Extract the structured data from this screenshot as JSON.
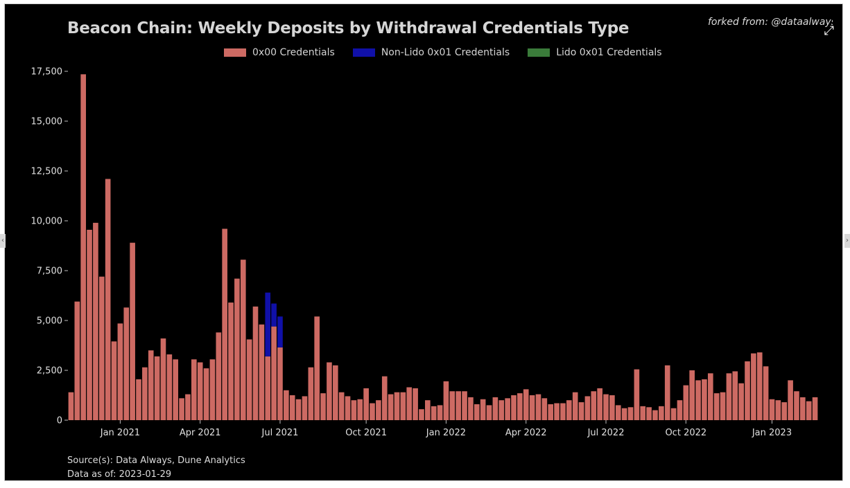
{
  "header": {
    "title": "Beacon Chain: Weekly Deposits by Withdrawal Credentials Type",
    "forked_from": "forked from: @dataalways",
    "expand_icon": "expand-icon"
  },
  "footer": {
    "source": "Source(s): Data Always, Dune Analytics",
    "data_as_of": "Data as of: 2023-01-29"
  },
  "colors": {
    "background": "#000000",
    "x00": "#cd6a63",
    "nonlido": "#1010a8",
    "lido": "#3a7b3a",
    "text": "#e0e0e0"
  },
  "chart_data": {
    "type": "bar",
    "stacked": true,
    "title": "Beacon Chain: Weekly Deposits by Withdrawal Credentials Type",
    "xlabel": "",
    "ylabel": "",
    "ylim": [
      0,
      17500
    ],
    "y_ticks": [
      0,
      2500,
      5000,
      7500,
      10000,
      12500,
      15000,
      17500
    ],
    "y_tick_labels": [
      "0",
      "2,500",
      "5,000",
      "7,500",
      "10,000",
      "12,500",
      "15,000",
      "17,500"
    ],
    "x_tick_labels": [
      "Jan 2021",
      "Apr 2021",
      "Jul 2021",
      "Oct 2021",
      "Jan 2022",
      "Apr 2022",
      "Jul 2022",
      "Oct 2022",
      "Jan 2023"
    ],
    "x_tick_index": [
      8,
      21,
      34,
      48,
      61,
      74,
      87,
      100,
      114
    ],
    "grid": false,
    "legend_position": "top",
    "series": [
      {
        "name": "0x00 Credentials",
        "color": "#cd6a63",
        "values": [
          1400,
          5950,
          17350,
          9550,
          9900,
          7200,
          12100,
          3950,
          4850,
          5650,
          8900,
          2050,
          2650,
          3500,
          3200,
          4100,
          3300,
          3050,
          1100,
          1300,
          3050,
          2900,
          2600,
          3050,
          4400,
          9600,
          5900,
          7100,
          8050,
          4050,
          5700,
          4800,
          3200,
          4700,
          3650,
          1500,
          1250,
          1050,
          1200,
          2650,
          5200,
          1350,
          2900,
          2750,
          1400,
          1200,
          1000,
          1050,
          1600,
          850,
          1000,
          2200,
          1300,
          1400,
          1400,
          1650,
          1600,
          550,
          1000,
          700,
          750,
          1950,
          1450,
          1450,
          1450,
          1150,
          800,
          1050,
          750,
          1150,
          1000,
          1100,
          1250,
          1350,
          1550,
          1250,
          1300,
          1100,
          800,
          850,
          850,
          1000,
          1400,
          900,
          1200,
          1450,
          1600,
          1300,
          1250,
          750,
          600,
          650,
          2550,
          700,
          650,
          500,
          700,
          2750,
          600,
          1000,
          1750,
          2500,
          2000,
          2050,
          2350,
          1350,
          1400,
          2350,
          2450,
          1850,
          2950,
          3350,
          3400,
          2700,
          1050,
          1000,
          900,
          2000,
          1450,
          1150,
          950,
          1150
        ]
      },
      {
        "name": "Non-Lido 0x01 Credentials",
        "color": "#1010a8",
        "values": [
          0,
          0,
          0,
          0,
          0,
          0,
          0,
          0,
          0,
          0,
          0,
          0,
          0,
          0,
          0,
          0,
          0,
          0,
          0,
          0,
          0,
          0,
          0,
          0,
          0,
          0,
          0,
          0,
          0,
          0,
          0,
          0,
          3200,
          1150,
          1550,
          0,
          0,
          0,
          0,
          0,
          0,
          0,
          0,
          0,
          0,
          0,
          0,
          0,
          0,
          0,
          0,
          0,
          0,
          0,
          0,
          0,
          0,
          0,
          0,
          0,
          0,
          0,
          0,
          0,
          0,
          0,
          0,
          0,
          0,
          0,
          0,
          0,
          0,
          0,
          0,
          0,
          0,
          0,
          0,
          0,
          0,
          0,
          0,
          0,
          0,
          0,
          0,
          0,
          0,
          0,
          0,
          0,
          0,
          0,
          0,
          0,
          0,
          0,
          0,
          0,
          0,
          0,
          0,
          0,
          0,
          0,
          0,
          0,
          0,
          0,
          0,
          0,
          0,
          0,
          0,
          0,
          0,
          0,
          0,
          0
        ]
      },
      {
        "name": "Lido 0x01 Credentials",
        "color": "#3a7b3a",
        "values": [
          0,
          0,
          0,
          0,
          0,
          0,
          0,
          0,
          0,
          0,
          0,
          0,
          0,
          0,
          0,
          0,
          0,
          0,
          0,
          0,
          0,
          0,
          0,
          0,
          0,
          0,
          0,
          0,
          0,
          0,
          0,
          0,
          0,
          0,
          0,
          0,
          0,
          0,
          0,
          0,
          0,
          0,
          0,
          0,
          0,
          0,
          0,
          0,
          0,
          0,
          0,
          0,
          0,
          0,
          0,
          0,
          0,
          0,
          0,
          0,
          0,
          0,
          0,
          0,
          0,
          0,
          0,
          0,
          0,
          0,
          0,
          0,
          0,
          0,
          0,
          0,
          0,
          0,
          0,
          0,
          0,
          0,
          0,
          0,
          0,
          0,
          0,
          0,
          0,
          0,
          0,
          0,
          0,
          0,
          0,
          0,
          0,
          0,
          0,
          0,
          0,
          0,
          0,
          0,
          0,
          0,
          0,
          0,
          0,
          0,
          0,
          0,
          0,
          0,
          0,
          0,
          0,
          0,
          0,
          0,
          0
        ]
      }
    ]
  }
}
